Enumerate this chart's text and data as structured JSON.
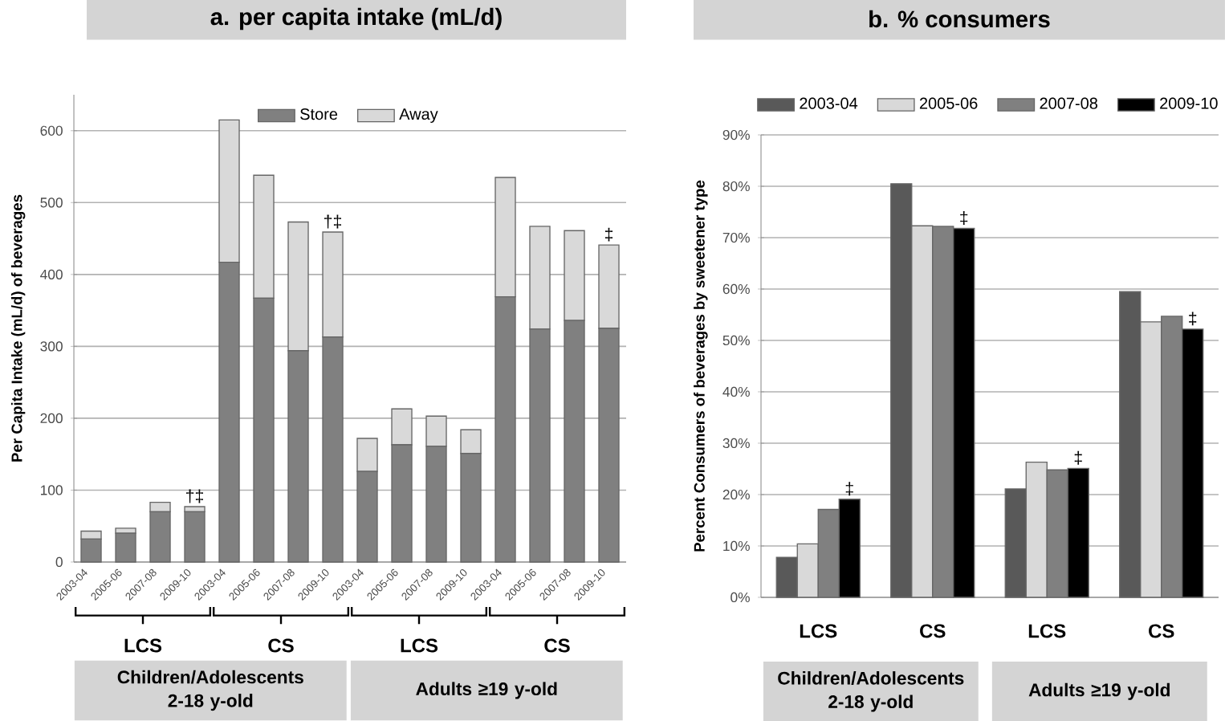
{
  "chart_data": [
    {
      "type": "bar",
      "title": "a. per capita intake (mL/d)",
      "ylabel": "Per Capita Intake (mL/d) of beverages",
      "stacked": true,
      "categories": [
        "2003-04",
        "2005-06",
        "2007-08",
        "2009-10",
        "2003-04",
        "2005-06",
        "2007-08",
        "2009-10",
        "2003-04",
        "2005-06",
        "2007-08",
        "2009-10",
        "2003-04",
        "2005-06",
        "2007-08",
        "2009-10"
      ],
      "series": [
        {
          "name": "Store",
          "color": "#808080",
          "values": [
            32,
            40,
            70,
            70,
            417,
            367,
            294,
            313,
            126,
            163,
            161,
            151,
            369,
            324,
            336,
            325
          ]
        },
        {
          "name": "Away",
          "color": "#d9d9d9",
          "values": [
            11,
            7,
            13,
            7,
            198,
            171,
            179,
            146,
            46,
            50,
            42,
            33,
            166,
            143,
            125,
            116
          ],
          "value_labels": [
            null,
            null,
            null,
            "†‡",
            null,
            null,
            null,
            "†‡",
            null,
            null,
            null,
            null,
            null,
            null,
            null,
            "‡"
          ]
        }
      ],
      "ylim": [
        0,
        650
      ],
      "yticks": [
        0,
        100,
        200,
        300,
        400,
        500,
        600
      ],
      "grid": "y",
      "legend": "top",
      "annotations": [
        "LCS",
        "CS",
        "LCS",
        "CS",
        "Children/Adolescents 2-18 y-old",
        "Adults ≥19 y-old"
      ]
    },
    {
      "type": "bar",
      "title": "b. % consumers",
      "ylabel": "Percent Consumers of beverages by sweetener type",
      "categories": [
        "LCS",
        "CS",
        "LCS",
        "CS"
      ],
      "series": [
        {
          "name": "2003-04",
          "color": "#595959",
          "values": [
            7.8,
            80.5,
            21.1,
            59.5
          ]
        },
        {
          "name": "2005-06",
          "color": "#d9d9d9",
          "values": [
            10.4,
            72.3,
            26.3,
            53.6
          ]
        },
        {
          "name": "2007-08",
          "color": "#808080",
          "values": [
            17.1,
            72.2,
            24.8,
            54.7
          ]
        },
        {
          "name": "2009-10",
          "color": "#000000",
          "values": [
            19.1,
            71.8,
            25.1,
            52.2
          ],
          "value_labels": [
            "‡",
            "‡",
            "‡",
            "‡"
          ]
        }
      ],
      "ylim": [
        0,
        90
      ],
      "yticks": [
        {
          "value": 0,
          "label": "0%"
        },
        {
          "value": 10,
          "label": "10%"
        },
        {
          "value": 20,
          "label": "20%"
        },
        {
          "value": 30,
          "label": "30%"
        },
        {
          "value": 40,
          "label": "40%"
        },
        {
          "value": 50,
          "label": "50%"
        },
        {
          "value": 60,
          "label": "60%"
        },
        {
          "value": 70,
          "label": "70%"
        },
        {
          "value": 80,
          "label": "80%"
        },
        {
          "value": 90,
          "label": "90%"
        }
      ],
      "grid": "y",
      "legend": "top",
      "annotations": [
        "Children/Adolescents 2-18 y-old",
        "Adults ≥19 y-old"
      ]
    }
  ]
}
